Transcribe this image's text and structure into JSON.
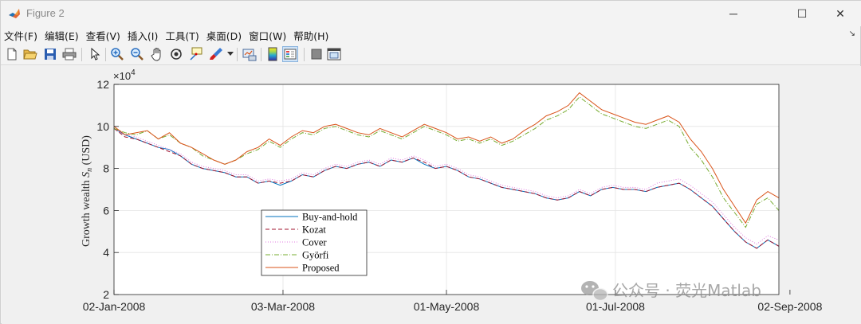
{
  "window": {
    "title": "Figure 2",
    "minimize_glyph": "─",
    "maximize_glyph": "☐",
    "close_glyph": "✕"
  },
  "menu": {
    "items": [
      "文件(F)",
      "编辑(E)",
      "查看(V)",
      "插入(I)",
      "工具(T)",
      "桌面(D)",
      "窗口(W)",
      "帮助(H)"
    ],
    "dock_arrow": "↘"
  },
  "toolbar": {
    "icons": [
      "new-figure-icon",
      "open-folder-icon",
      "save-icon",
      "print-icon",
      "pointer-icon",
      "zoom-in-icon",
      "zoom-out-icon",
      "pan-hand-icon",
      "rotate-3d-icon",
      "data-cursor-icon",
      "brush-icon",
      "brush-dropdown-icon",
      "link-plot-icon",
      "colorbar-icon",
      "legend-icon",
      "hide-plot-tools-icon",
      "show-plot-tools-icon"
    ]
  },
  "watermark": {
    "text": "公众号 · 荧光Matlab",
    "icon": "wechat-icon"
  },
  "chart_data": {
    "type": "line",
    "title": "",
    "ylabel": "Growth wealth S_n (USD)",
    "ylabel_main": "Growth wealth ",
    "ylabel_var": "S",
    "ylabel_sub": "n",
    "ylabel_unit": " (USD)",
    "xlabel": "",
    "y_exponent_base": "×10",
    "y_exponent_power": "4",
    "ylim": [
      2,
      12
    ],
    "yticks": [
      2,
      4,
      6,
      8,
      10,
      12
    ],
    "xlim_days": [
      0,
      240
    ],
    "xticks": [
      {
        "day": 0,
        "label": "02-Jan-2008"
      },
      {
        "day": 61,
        "label": "03-Mar-2008"
      },
      {
        "day": 120,
        "label": "01-May-2008"
      },
      {
        "day": 181,
        "label": "01-Jul-2008"
      },
      {
        "day": 244,
        "label": "02-Sep-2008"
      }
    ],
    "grid": true,
    "legend_position": "lower-left",
    "series": [
      {
        "name": "Buy-and-hold",
        "color": "#0072bd",
        "dash": "",
        "points": [
          [
            0,
            9.9
          ],
          [
            4,
            9.6
          ],
          [
            8,
            9.4
          ],
          [
            12,
            9.2
          ],
          [
            16,
            9.0
          ],
          [
            20,
            8.9
          ],
          [
            24,
            8.6
          ],
          [
            28,
            8.2
          ],
          [
            32,
            8.0
          ],
          [
            36,
            7.9
          ],
          [
            40,
            7.8
          ],
          [
            44,
            7.6
          ],
          [
            48,
            7.6
          ],
          [
            52,
            7.3
          ],
          [
            56,
            7.4
          ],
          [
            60,
            7.2
          ],
          [
            64,
            7.4
          ],
          [
            68,
            7.7
          ],
          [
            72,
            7.6
          ],
          [
            76,
            7.9
          ],
          [
            80,
            8.1
          ],
          [
            84,
            8.0
          ],
          [
            88,
            8.2
          ],
          [
            92,
            8.3
          ],
          [
            96,
            8.1
          ],
          [
            100,
            8.4
          ],
          [
            104,
            8.3
          ],
          [
            108,
            8.5
          ],
          [
            112,
            8.2
          ],
          [
            116,
            8.0
          ],
          [
            120,
            8.1
          ],
          [
            124,
            7.9
          ],
          [
            128,
            7.6
          ],
          [
            132,
            7.5
          ],
          [
            136,
            7.3
          ],
          [
            140,
            7.1
          ],
          [
            144,
            7.0
          ],
          [
            148,
            6.9
          ],
          [
            152,
            6.8
          ],
          [
            156,
            6.6
          ],
          [
            160,
            6.5
          ],
          [
            164,
            6.6
          ],
          [
            168,
            6.9
          ],
          [
            172,
            6.7
          ],
          [
            176,
            7.0
          ],
          [
            180,
            7.1
          ],
          [
            184,
            7.0
          ],
          [
            188,
            7.0
          ],
          [
            192,
            6.9
          ],
          [
            196,
            7.1
          ],
          [
            200,
            7.2
          ],
          [
            204,
            7.3
          ],
          [
            208,
            7.0
          ],
          [
            212,
            6.6
          ],
          [
            216,
            6.2
          ],
          [
            220,
            5.6
          ],
          [
            224,
            5.0
          ],
          [
            228,
            4.5
          ],
          [
            232,
            4.2
          ],
          [
            236,
            4.6
          ],
          [
            240,
            4.3
          ]
        ]
      },
      {
        "name": "Kozat",
        "color": "#a2142f",
        "dash": "5,3",
        "points": [
          [
            0,
            9.9
          ],
          [
            4,
            9.5
          ],
          [
            8,
            9.4
          ],
          [
            12,
            9.2
          ],
          [
            16,
            9.0
          ],
          [
            20,
            8.8
          ],
          [
            24,
            8.6
          ],
          [
            28,
            8.2
          ],
          [
            32,
            8.0
          ],
          [
            36,
            7.9
          ],
          [
            40,
            7.8
          ],
          [
            44,
            7.6
          ],
          [
            48,
            7.6
          ],
          [
            52,
            7.3
          ],
          [
            56,
            7.4
          ],
          [
            60,
            7.3
          ],
          [
            64,
            7.4
          ],
          [
            68,
            7.7
          ],
          [
            72,
            7.6
          ],
          [
            76,
            7.9
          ],
          [
            80,
            8.1
          ],
          [
            84,
            8.0
          ],
          [
            88,
            8.2
          ],
          [
            92,
            8.3
          ],
          [
            96,
            8.1
          ],
          [
            100,
            8.4
          ],
          [
            104,
            8.3
          ],
          [
            108,
            8.5
          ],
          [
            112,
            8.3
          ],
          [
            116,
            8.0
          ],
          [
            120,
            8.1
          ],
          [
            124,
            7.9
          ],
          [
            128,
            7.6
          ],
          [
            132,
            7.5
          ],
          [
            136,
            7.3
          ],
          [
            140,
            7.1
          ],
          [
            144,
            7.0
          ],
          [
            148,
            6.9
          ],
          [
            152,
            6.8
          ],
          [
            156,
            6.6
          ],
          [
            160,
            6.5
          ],
          [
            164,
            6.6
          ],
          [
            168,
            6.9
          ],
          [
            172,
            6.7
          ],
          [
            176,
            7.0
          ],
          [
            180,
            7.1
          ],
          [
            184,
            7.0
          ],
          [
            188,
            7.0
          ],
          [
            192,
            6.9
          ],
          [
            196,
            7.1
          ],
          [
            200,
            7.2
          ],
          [
            204,
            7.3
          ],
          [
            208,
            7.0
          ],
          [
            212,
            6.6
          ],
          [
            216,
            6.2
          ],
          [
            220,
            5.6
          ],
          [
            224,
            5.0
          ],
          [
            228,
            4.5
          ],
          [
            232,
            4.2
          ],
          [
            236,
            4.6
          ],
          [
            240,
            4.3
          ]
        ]
      },
      {
        "name": "Cover",
        "color": "#e07be0",
        "dash": "1,2",
        "points": [
          [
            0,
            9.9
          ],
          [
            4,
            9.6
          ],
          [
            8,
            9.5
          ],
          [
            12,
            9.3
          ],
          [
            16,
            9.1
          ],
          [
            20,
            8.9
          ],
          [
            24,
            8.7
          ],
          [
            28,
            8.3
          ],
          [
            32,
            8.1
          ],
          [
            36,
            8.0
          ],
          [
            40,
            7.9
          ],
          [
            44,
            7.7
          ],
          [
            48,
            7.7
          ],
          [
            52,
            7.4
          ],
          [
            56,
            7.5
          ],
          [
            60,
            7.4
          ],
          [
            64,
            7.5
          ],
          [
            68,
            7.8
          ],
          [
            72,
            7.7
          ],
          [
            76,
            8.0
          ],
          [
            80,
            8.2
          ],
          [
            84,
            8.1
          ],
          [
            88,
            8.3
          ],
          [
            92,
            8.4
          ],
          [
            96,
            8.2
          ],
          [
            100,
            8.5
          ],
          [
            104,
            8.4
          ],
          [
            108,
            8.6
          ],
          [
            112,
            8.4
          ],
          [
            116,
            8.1
          ],
          [
            120,
            8.2
          ],
          [
            124,
            8.0
          ],
          [
            128,
            7.7
          ],
          [
            132,
            7.6
          ],
          [
            136,
            7.4
          ],
          [
            140,
            7.2
          ],
          [
            144,
            7.1
          ],
          [
            148,
            7.0
          ],
          [
            152,
            6.9
          ],
          [
            156,
            6.7
          ],
          [
            160,
            6.6
          ],
          [
            164,
            6.7
          ],
          [
            168,
            7.0
          ],
          [
            172,
            6.8
          ],
          [
            176,
            7.1
          ],
          [
            180,
            7.2
          ],
          [
            184,
            7.1
          ],
          [
            188,
            7.1
          ],
          [
            192,
            7.0
          ],
          [
            196,
            7.3
          ],
          [
            200,
            7.4
          ],
          [
            204,
            7.5
          ],
          [
            208,
            7.2
          ],
          [
            212,
            6.8
          ],
          [
            216,
            6.4
          ],
          [
            220,
            5.8
          ],
          [
            224,
            5.2
          ],
          [
            228,
            4.7
          ],
          [
            232,
            4.4
          ],
          [
            236,
            4.8
          ],
          [
            240,
            4.6
          ]
        ]
      },
      {
        "name": "Györfi",
        "color": "#77ac30",
        "dash": "6,2,1,2",
        "points": [
          [
            0,
            9.9
          ],
          [
            4,
            9.7
          ],
          [
            8,
            9.6
          ],
          [
            12,
            9.8
          ],
          [
            16,
            9.4
          ],
          [
            20,
            9.6
          ],
          [
            24,
            9.2
          ],
          [
            28,
            9.0
          ],
          [
            32,
            8.6
          ],
          [
            36,
            8.4
          ],
          [
            40,
            8.2
          ],
          [
            44,
            8.4
          ],
          [
            48,
            8.7
          ],
          [
            52,
            8.9
          ],
          [
            56,
            9.3
          ],
          [
            60,
            9.0
          ],
          [
            64,
            9.4
          ],
          [
            68,
            9.7
          ],
          [
            72,
            9.6
          ],
          [
            76,
            9.9
          ],
          [
            80,
            10.0
          ],
          [
            84,
            9.8
          ],
          [
            88,
            9.6
          ],
          [
            92,
            9.5
          ],
          [
            96,
            9.8
          ],
          [
            100,
            9.6
          ],
          [
            104,
            9.4
          ],
          [
            108,
            9.7
          ],
          [
            112,
            10.0
          ],
          [
            116,
            9.8
          ],
          [
            120,
            9.6
          ],
          [
            124,
            9.3
          ],
          [
            128,
            9.4
          ],
          [
            132,
            9.2
          ],
          [
            136,
            9.4
          ],
          [
            140,
            9.1
          ],
          [
            144,
            9.3
          ],
          [
            148,
            9.6
          ],
          [
            152,
            9.9
          ],
          [
            156,
            10.3
          ],
          [
            160,
            10.5
          ],
          [
            164,
            10.8
          ],
          [
            168,
            11.4
          ],
          [
            172,
            11.0
          ],
          [
            176,
            10.6
          ],
          [
            180,
            10.4
          ],
          [
            184,
            10.2
          ],
          [
            188,
            10.0
          ],
          [
            192,
            9.9
          ],
          [
            196,
            10.1
          ],
          [
            200,
            10.3
          ],
          [
            204,
            10.0
          ],
          [
            208,
            9.0
          ],
          [
            212,
            8.4
          ],
          [
            216,
            7.6
          ],
          [
            220,
            6.6
          ],
          [
            224,
            5.9
          ],
          [
            228,
            5.2
          ],
          [
            232,
            6.3
          ],
          [
            236,
            6.6
          ],
          [
            240,
            6.0
          ]
        ]
      },
      {
        "name": "Proposed",
        "color": "#d95319",
        "dash": "",
        "points": [
          [
            0,
            10.0
          ],
          [
            4,
            9.6
          ],
          [
            8,
            9.7
          ],
          [
            12,
            9.8
          ],
          [
            16,
            9.4
          ],
          [
            20,
            9.7
          ],
          [
            24,
            9.2
          ],
          [
            28,
            9.0
          ],
          [
            32,
            8.7
          ],
          [
            36,
            8.4
          ],
          [
            40,
            8.2
          ],
          [
            44,
            8.4
          ],
          [
            48,
            8.8
          ],
          [
            52,
            9.0
          ],
          [
            56,
            9.4
          ],
          [
            60,
            9.1
          ],
          [
            64,
            9.5
          ],
          [
            68,
            9.8
          ],
          [
            72,
            9.7
          ],
          [
            76,
            10.0
          ],
          [
            80,
            10.1
          ],
          [
            84,
            9.9
          ],
          [
            88,
            9.7
          ],
          [
            92,
            9.6
          ],
          [
            96,
            9.9
          ],
          [
            100,
            9.7
          ],
          [
            104,
            9.5
          ],
          [
            108,
            9.8
          ],
          [
            112,
            10.1
          ],
          [
            116,
            9.9
          ],
          [
            120,
            9.7
          ],
          [
            124,
            9.4
          ],
          [
            128,
            9.5
          ],
          [
            132,
            9.3
          ],
          [
            136,
            9.5
          ],
          [
            140,
            9.2
          ],
          [
            144,
            9.4
          ],
          [
            148,
            9.8
          ],
          [
            152,
            10.1
          ],
          [
            156,
            10.5
          ],
          [
            160,
            10.7
          ],
          [
            164,
            11.0
          ],
          [
            168,
            11.6
          ],
          [
            172,
            11.2
          ],
          [
            176,
            10.8
          ],
          [
            180,
            10.6
          ],
          [
            184,
            10.4
          ],
          [
            188,
            10.2
          ],
          [
            192,
            10.1
          ],
          [
            196,
            10.3
          ],
          [
            200,
            10.5
          ],
          [
            204,
            10.2
          ],
          [
            208,
            9.4
          ],
          [
            212,
            8.8
          ],
          [
            216,
            8.0
          ],
          [
            220,
            7.0
          ],
          [
            224,
            6.2
          ],
          [
            228,
            5.4
          ],
          [
            232,
            6.5
          ],
          [
            236,
            6.9
          ],
          [
            240,
            6.6
          ]
        ]
      }
    ]
  }
}
